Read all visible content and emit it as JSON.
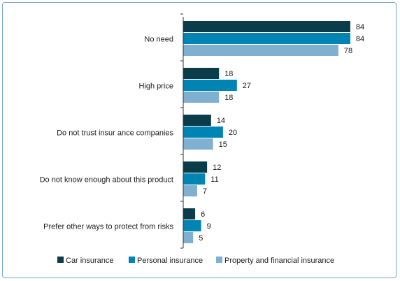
{
  "chart_data": {
    "type": "bar",
    "orientation": "horizontal",
    "categories": [
      "No need",
      "High price",
      "Do not trust insur  ance companies",
      "Do not know enough about this product",
      "Prefer other ways to protect from risks"
    ],
    "series": [
      {
        "name": "Car insurance",
        "color": "#0b3c49",
        "values": [
          84,
          18,
          14,
          12,
          6
        ]
      },
      {
        "name": "Personal insurance",
        "color": "#0084b4",
        "values": [
          84,
          27,
          20,
          11,
          9
        ]
      },
      {
        "name": "Property and financial insurance",
        "color": "#7fb0d0",
        "values": [
          78,
          18,
          15,
          7,
          5
        ]
      }
    ],
    "xlim": [
      0,
      90
    ],
    "grid": false,
    "legend": "bottom",
    "title": "",
    "xlabel": "",
    "ylabel": ""
  }
}
